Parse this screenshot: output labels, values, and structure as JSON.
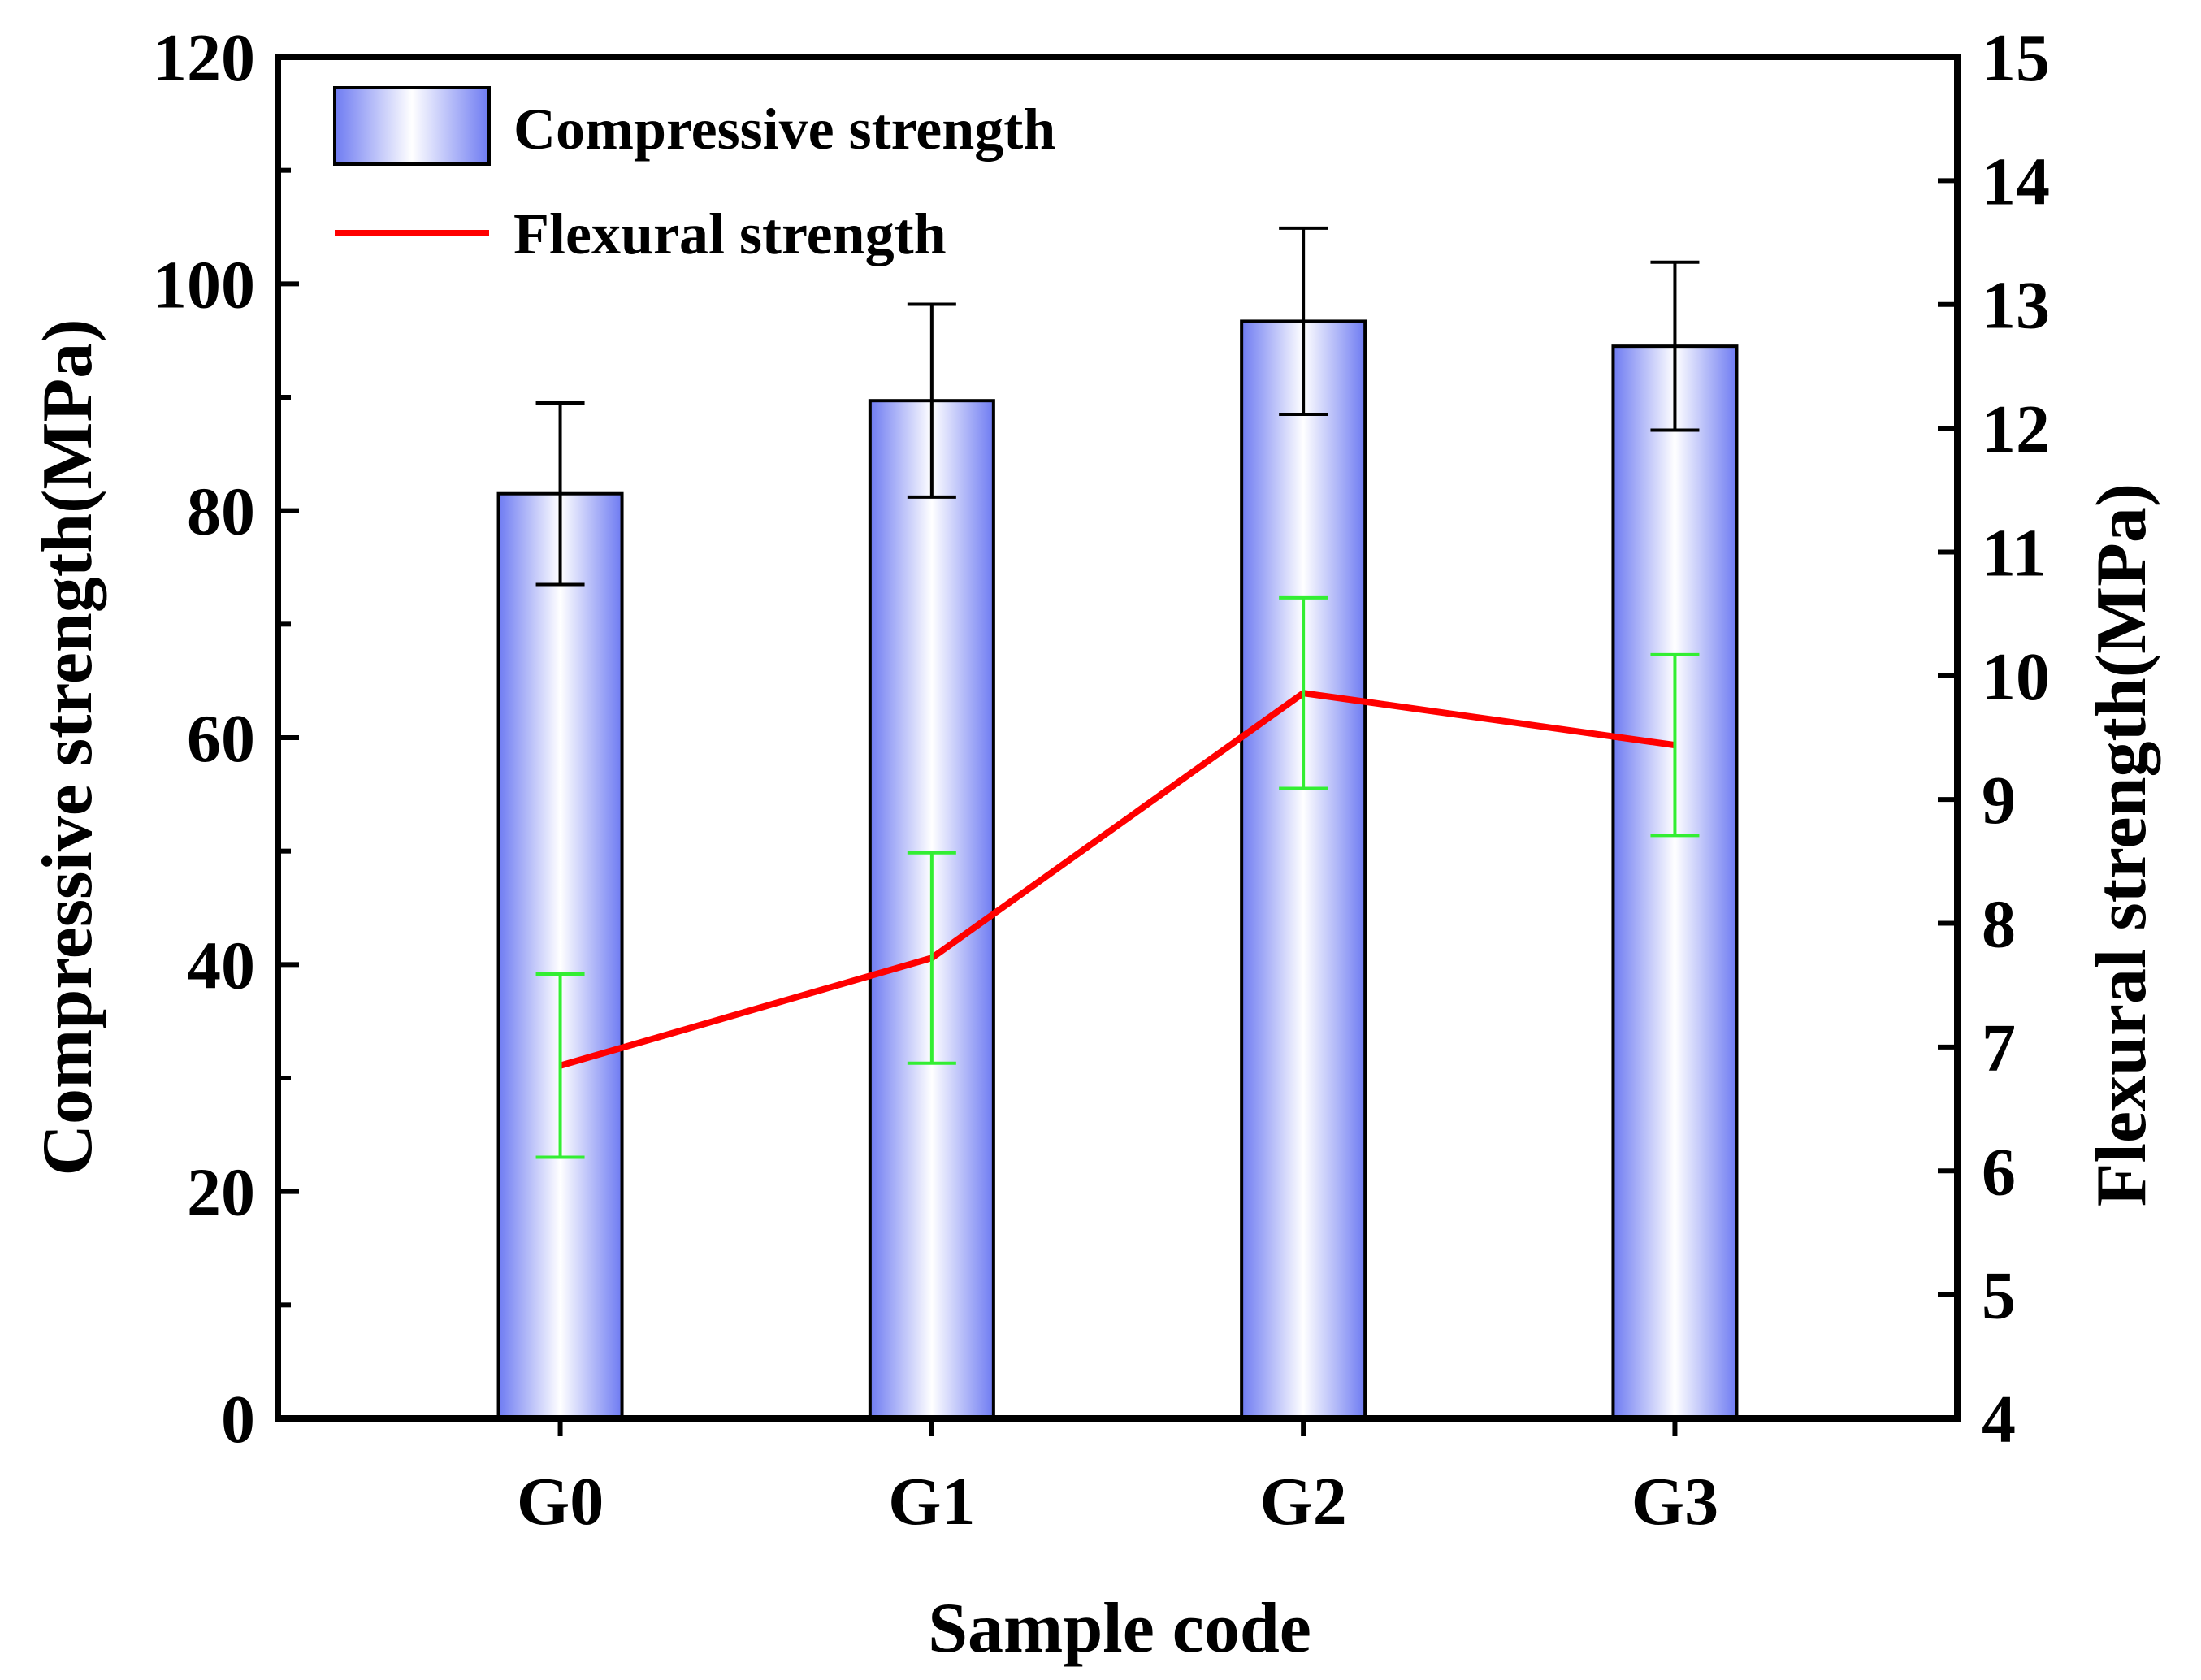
{
  "chart_data": {
    "type": "bar",
    "xlabel": "Sample code",
    "ylabel_left": "Compressive strength(MPa)",
    "ylabel_right": "Flexural strength(MPa)",
    "categories": [
      "G0",
      "G1",
      "G2",
      "G3"
    ],
    "y_left": {
      "range": [
        0,
        120
      ],
      "ticks": [
        0,
        20,
        40,
        60,
        80,
        100,
        120
      ],
      "tick_labels": [
        "0",
        "20",
        "40",
        "60",
        "80",
        "100",
        "120"
      ],
      "minor_step": 10
    },
    "y_right": {
      "range": [
        4,
        15
      ],
      "ticks": [
        4,
        5,
        6,
        7,
        8,
        9,
        10,
        11,
        12,
        13,
        14,
        15
      ],
      "tick_labels": [
        "4",
        "5",
        "6",
        "7",
        "8",
        "9",
        "10",
        "11",
        "12",
        "13",
        "14",
        "15"
      ]
    },
    "series": [
      {
        "name": "Compressive strength",
        "type": "bar",
        "axis": "left",
        "values": [
          81.5,
          89.7,
          96.7,
          94.5
        ],
        "errors": [
          8.0,
          8.5,
          8.2,
          7.4
        ],
        "color": "#6E7BF2",
        "error_color": "#000000"
      },
      {
        "name": "Flexural strength",
        "type": "line",
        "axis": "right",
        "values": [
          6.85,
          7.72,
          9.86,
          9.44
        ],
        "errors": [
          0.74,
          0.85,
          0.77,
          0.73
        ],
        "color": "#FF0000",
        "error_color": "#33EE33"
      }
    ],
    "legend": {
      "position": "top-left",
      "entries": [
        "Compressive strength",
        "Flexural strength"
      ]
    },
    "grid": false
  }
}
